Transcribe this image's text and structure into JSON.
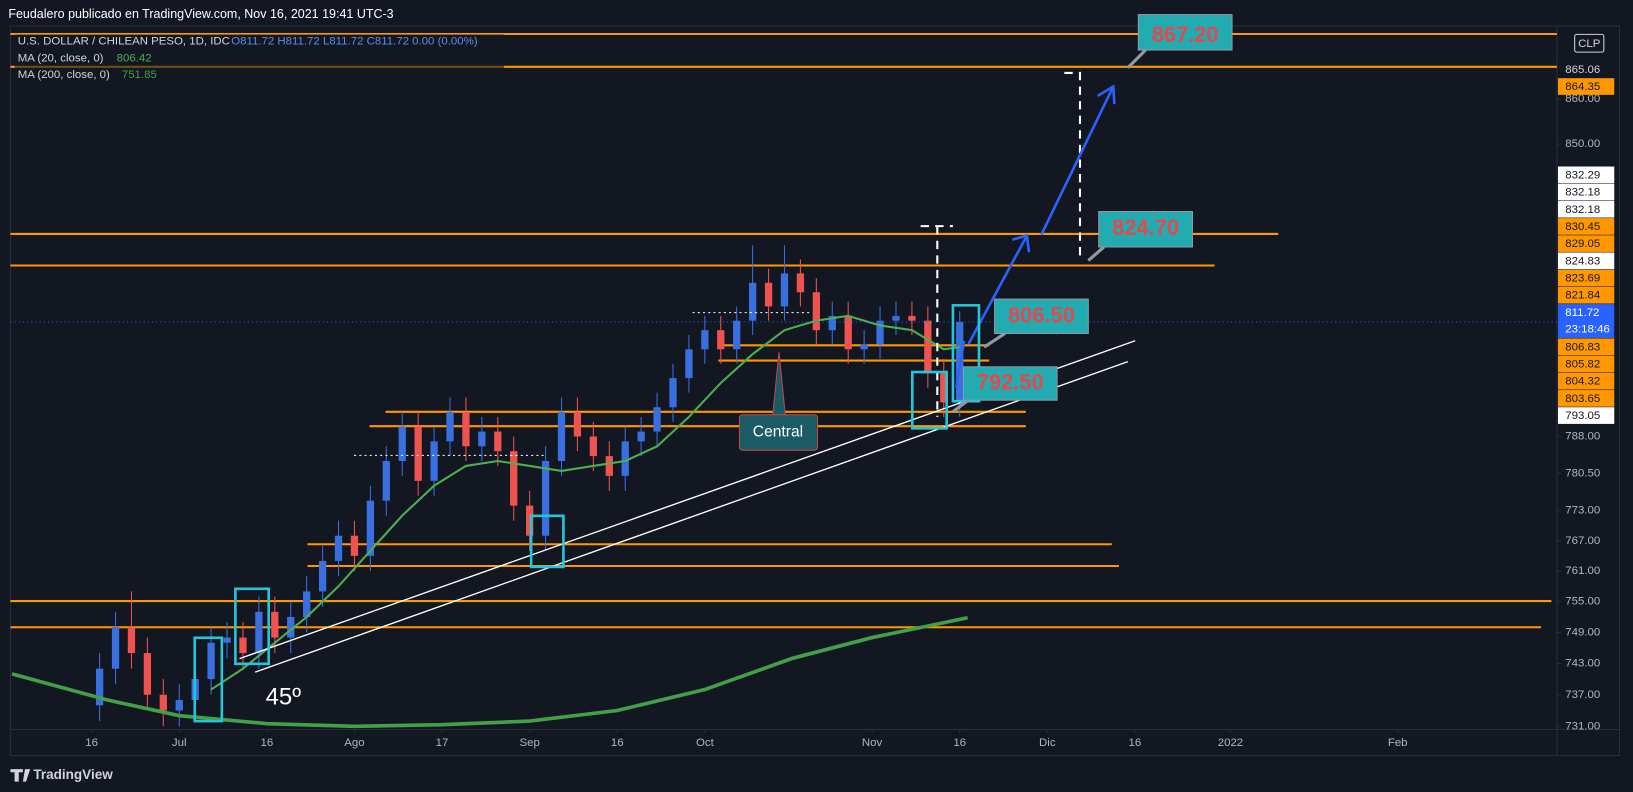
{
  "header": {
    "author_line": "Feudalero publicado en TradingView.com, Nov 16, 2021 19:41 UTC-3"
  },
  "footer": {
    "brand": "TradingView"
  },
  "chart_data": {
    "type": "candlestick",
    "title": "U.S. DOLLAR / CHILEAN PESO, 1D, IDC",
    "ohlc_readout": "O811.72 H811.72 L811.72 C811.72 0.00 (0.00%)",
    "currency": "CLP",
    "countdown": "23:18:46",
    "log_scale": true,
    "up_color": "#3a6fe0",
    "down_color": "#ef5350",
    "x": [
      -10,
      -8,
      -6,
      -4,
      -2,
      0,
      2,
      4,
      6,
      8,
      10,
      12,
      14,
      16,
      18,
      20,
      22,
      24,
      26,
      28,
      30,
      32,
      34,
      36,
      38,
      40,
      42,
      44,
      46,
      48,
      50,
      52,
      54,
      56,
      58,
      60,
      62,
      64,
      66,
      68,
      70,
      72,
      74,
      76,
      78,
      80,
      82,
      84,
      86,
      88,
      90,
      92,
      94,
      96,
      98
    ],
    "open": [
      735,
      742,
      750,
      745,
      737,
      734,
      736,
      740,
      747,
      748,
      745,
      753,
      748,
      752,
      757,
      763,
      768,
      764,
      775,
      783,
      790,
      779,
      787,
      793,
      786,
      789,
      785,
      774,
      768,
      783,
      793,
      788,
      784,
      780,
      787,
      789,
      794,
      800,
      806,
      810,
      806,
      812,
      820,
      815,
      822,
      818,
      810,
      813,
      806,
      807,
      812,
      813,
      812,
      801,
      795
    ],
    "high": [
      745,
      753,
      757,
      748,
      740,
      739,
      743,
      750,
      751,
      751,
      756,
      756,
      755,
      760,
      766,
      771,
      771,
      778,
      786,
      793,
      793,
      790,
      796,
      796,
      792,
      792,
      788,
      777,
      786,
      796,
      796,
      791,
      787,
      790,
      792,
      797,
      803,
      809,
      813,
      813,
      815,
      828,
      823,
      828,
      825,
      821,
      816,
      816,
      810,
      815,
      816,
      816,
      815,
      804,
      814
    ],
    "low": [
      732,
      739,
      742,
      734,
      731,
      731,
      733,
      737,
      744,
      742,
      742,
      745,
      745,
      749,
      754,
      760,
      761,
      761,
      772,
      780,
      776,
      776,
      784,
      783,
      783,
      782,
      771,
      765,
      765,
      780,
      785,
      781,
      777,
      777,
      784,
      786,
      791,
      797,
      803,
      803,
      803,
      809,
      812,
      812,
      815,
      807,
      807,
      803,
      803,
      804,
      809,
      809,
      798,
      792,
      792
    ],
    "close": [
      742,
      750,
      745,
      737,
      734,
      736,
      740,
      747,
      748,
      745,
      753,
      748,
      752,
      757,
      763,
      768,
      764,
      775,
      783,
      790,
      779,
      787,
      793,
      786,
      789,
      785,
      774,
      768,
      783,
      793,
      788,
      784,
      780,
      787,
      789,
      794,
      800,
      806,
      810,
      806,
      812,
      820,
      815,
      822,
      818,
      810,
      813,
      806,
      807,
      812,
      813,
      812,
      801,
      795,
      811.72
    ],
    "series": [
      {
        "name": "MA (20, close, 0)",
        "color": "#4caf50",
        "width": 2,
        "x": [
          4,
          8,
          12,
          16,
          20,
          24,
          28,
          32,
          36,
          40,
          44,
          48,
          52,
          56,
          60,
          64,
          68,
          72,
          76,
          80,
          84,
          88,
          92,
          96,
          98
        ],
        "values": [
          738,
          742,
          747,
          752,
          758,
          765,
          772,
          778,
          782,
          783,
          782,
          781,
          782,
          783,
          786,
          792,
          799,
          805,
          810,
          812,
          813,
          811,
          810,
          806,
          806.42
        ]
      },
      {
        "name": "MA (200, close, 0)",
        "color": "#43a047",
        "width": 3.5,
        "x": [
          -21,
          -9,
          0,
          11,
          22,
          33,
          44,
          55,
          66,
          77,
          87,
          99
        ],
        "values": [
          741,
          736,
          733,
          731.5,
          731,
          731.3,
          732,
          734,
          738,
          744,
          748,
          751.85
        ]
      }
    ],
    "xlim": [
      -21.2,
      173
    ],
    "xticks": [
      {
        "value": -11,
        "label": "16"
      },
      {
        "value": 0,
        "label": "Jul"
      },
      {
        "value": 11,
        "label": "16"
      },
      {
        "value": 22,
        "label": "Ago"
      },
      {
        "value": 33,
        "label": "17"
      },
      {
        "value": 44,
        "label": "Sep"
      },
      {
        "value": 55,
        "label": "16"
      },
      {
        "value": 66,
        "label": "Oct"
      },
      {
        "value": 87,
        "label": "Nov"
      },
      {
        "value": 98,
        "label": "16"
      },
      {
        "value": 109,
        "label": "Dic"
      },
      {
        "value": 120,
        "label": "16"
      },
      {
        "value": 132,
        "label": "2022"
      },
      {
        "value": 153,
        "label": "Feb"
      }
    ],
    "ylim": [
      730.4,
      876.4
    ],
    "yticks": [
      {
        "value": 860,
        "label": "860.00"
      },
      {
        "value": 850,
        "label": "850.00"
      },
      {
        "value": 788,
        "label": "788.00"
      },
      {
        "value": 780.5,
        "label": "780.50"
      },
      {
        "value": 773,
        "label": "773.00"
      },
      {
        "value": 767,
        "label": "767.00"
      },
      {
        "value": 761,
        "label": "761.00"
      },
      {
        "value": 755,
        "label": "755.00"
      },
      {
        "value": 749,
        "label": "749.00"
      },
      {
        "value": 743,
        "label": "743.00"
      },
      {
        "value": 737,
        "label": "737.00"
      },
      {
        "value": 731,
        "label": "731.00"
      }
    ],
    "level_color": "#ff9800",
    "levels": [
      {
        "value": 874.6,
        "from": -21.2,
        "to": 173
      },
      {
        "value": 867.2,
        "from": -21.2,
        "to": 173
      },
      {
        "value": 830.45,
        "from": -21.2,
        "to": 138
      },
      {
        "value": 823.69,
        "from": -21.2,
        "to": 130
      },
      {
        "value": 806.83,
        "from": 67.7,
        "to": 101.7
      },
      {
        "value": 803.65,
        "from": 67.7,
        "to": 101.7
      },
      {
        "value": 793.05,
        "from": 25.9,
        "to": 106.3
      },
      {
        "value": 790.1,
        "from": 23.9,
        "to": 106.3
      },
      {
        "value": 766.3,
        "from": 16.1,
        "to": 117.1
      },
      {
        "value": 762,
        "from": 16.1,
        "to": 118
      },
      {
        "value": 755.1,
        "from": -21.2,
        "to": 172.3
      },
      {
        "value": 750,
        "from": -21.2,
        "to": 171
      }
    ],
    "price_labels": [
      {
        "value": 865.06,
        "style": "plain"
      },
      {
        "value": 864.35,
        "style": "orange"
      },
      {
        "value": 832.29,
        "style": "white"
      },
      {
        "value": 832.18,
        "style": "white"
      },
      {
        "value": 832.18,
        "style": "white"
      },
      {
        "value": 830.45,
        "style": "orange"
      },
      {
        "value": 829.05,
        "style": "orange"
      },
      {
        "value": 824.83,
        "style": "white"
      },
      {
        "value": 823.69,
        "style": "orange"
      },
      {
        "value": 821.84,
        "style": "orange"
      },
      {
        "value": 811.72,
        "style": "current"
      },
      {
        "value": 806.83,
        "style": "orange"
      },
      {
        "value": 805.82,
        "style": "orange"
      },
      {
        "value": 804.32,
        "style": "orange"
      },
      {
        "value": 803.65,
        "style": "orange"
      },
      {
        "value": 793.05,
        "style": "white"
      }
    ],
    "annotations": [
      {
        "text": "867.20"
      },
      {
        "text": "824.70"
      },
      {
        "text": "806.50"
      },
      {
        "text": "792.50"
      },
      {
        "text": "Central"
      },
      {
        "text": "45º"
      }
    ]
  }
}
